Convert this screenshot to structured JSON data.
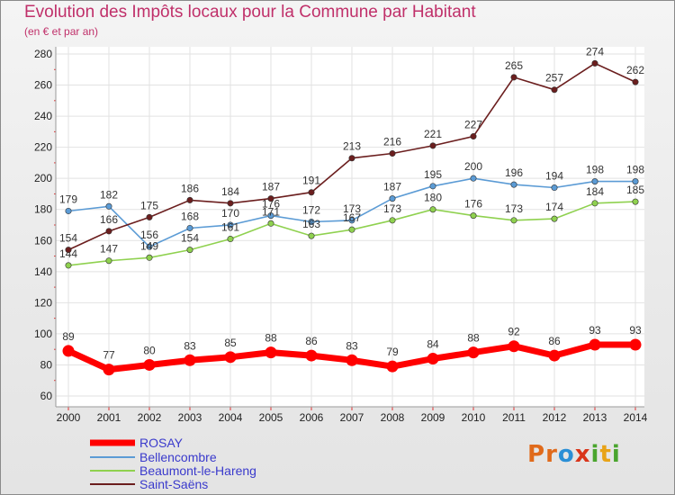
{
  "header": {
    "title": "Evolution des Impôts locaux pour la Commune par Habitant",
    "subtitle": "(en € et par an)"
  },
  "logo": {
    "text": "Proxiti",
    "letters": [
      "P",
      "r",
      "o",
      "x",
      "i",
      "t",
      "i"
    ],
    "colors": [
      "#e06a1b",
      "#e06a1b",
      "#2a8fd6",
      "#d9341a",
      "#4aa52e",
      "#e8a317",
      "#4aa52e"
    ]
  },
  "chart_data": {
    "type": "line",
    "title": "Evolution des Impôts locaux pour la Commune par Habitant",
    "subtitle": "(en € et par an)",
    "xlabel": "",
    "ylabel": "",
    "categories": [
      "2000",
      "2001",
      "2002",
      "2003",
      "2004",
      "2005",
      "2006",
      "2007",
      "2008",
      "2009",
      "2010",
      "2011",
      "2012",
      "2013",
      "2014"
    ],
    "ylim": [
      60,
      280
    ],
    "yticks": [
      60,
      80,
      100,
      120,
      140,
      160,
      180,
      200,
      220,
      240,
      260,
      280
    ],
    "grid": true,
    "legend_position": "bottom-left",
    "series": [
      {
        "name": "ROSAY",
        "color": "#ff0000",
        "values": [
          89,
          77,
          80,
          83,
          85,
          88,
          86,
          83,
          79,
          84,
          88,
          92,
          86,
          93,
          93
        ],
        "thick": true
      },
      {
        "name": "Bellencombre",
        "color": "#5b9bd5",
        "values": [
          179,
          182,
          156,
          168,
          170,
          176,
          172,
          173,
          187,
          195,
          200,
          196,
          194,
          198,
          198
        ]
      },
      {
        "name": "Beaumont-le-Hareng",
        "color": "#8fd14f",
        "values": [
          144,
          147,
          149,
          154,
          161,
          171,
          163,
          167,
          173,
          180,
          176,
          173,
          174,
          184,
          185
        ]
      },
      {
        "name": "Saint-Saëns",
        "color": "#6b1e1e",
        "values": [
          154,
          166,
          175,
          186,
          184,
          187,
          191,
          213,
          216,
          221,
          227,
          265,
          257,
          274,
          262
        ]
      }
    ],
    "label_colors": {
      "legend": "#3a3acc"
    }
  }
}
